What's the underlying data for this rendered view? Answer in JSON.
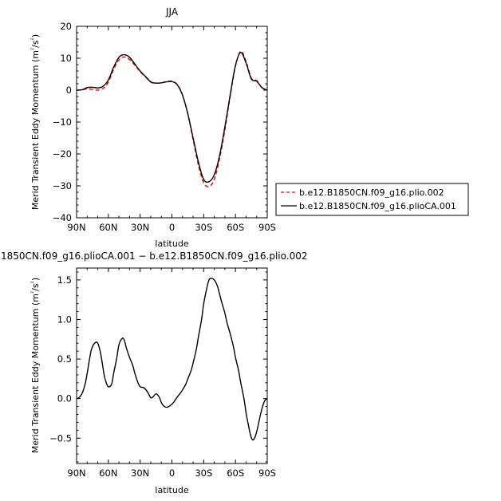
{
  "chart_data": [
    {
      "type": "line",
      "title": "JJA",
      "xlabel": "latitude",
      "ylabel": "Merid Transient Eddy Momentum (m²/s²)",
      "ylabel_main": "Merid Transient Eddy Momentum  (m",
      "ylabel_unit": "²",
      "ylabel_div": "/s",
      "ylabel_end": ")",
      "xlim": [
        90,
        -90
      ],
      "ylim": [
        -40,
        20
      ],
      "x_ticks": [
        90,
        60,
        30,
        0,
        -30,
        -60,
        -90
      ],
      "x_tick_labels": [
        "90N",
        "60N",
        "30N",
        "0",
        "30S",
        "60S",
        "90S"
      ],
      "y_ticks": [
        -40,
        -30,
        -20,
        -10,
        0,
        10,
        20
      ],
      "y_tick_labels": [
        "−40",
        "−30",
        "−20",
        "−10",
        "0",
        "10",
        "20"
      ],
      "legend_position": "right",
      "series": [
        {
          "name": "b.e12.B1850CN.f09_g16.plio.002",
          "color": "#e8000b",
          "dash": "dashed",
          "x": [
            90,
            85,
            80,
            75,
            70,
            65,
            60,
            55,
            50,
            45,
            40,
            35,
            30,
            25,
            20,
            15,
            10,
            5,
            0,
            -5,
            -10,
            -15,
            -20,
            -25,
            -30,
            -35,
            -40,
            -45,
            -50,
            -55,
            -60,
            -65,
            -70,
            -75,
            -80,
            -85,
            -90
          ],
          "values": [
            0,
            0.1,
            0.4,
            0.2,
            0,
            0.5,
            2.5,
            6.5,
            9.5,
            10.4,
            9.6,
            7.8,
            5.8,
            4.2,
            2.5,
            2.2,
            2.3,
            2.7,
            2.8,
            1.8,
            -1.5,
            -7.5,
            -15.5,
            -23.5,
            -29,
            -30.2,
            -28,
            -21.5,
            -12.5,
            -2,
            7.5,
            12.2,
            9,
            3.8,
            3,
            0.8,
            0
          ]
        },
        {
          "name": "b.e12.B1850CN.f09_g16.plioCA.001",
          "color": "#000000",
          "dash": "solid",
          "x": [
            90,
            85,
            80,
            75,
            70,
            65,
            60,
            55,
            50,
            45,
            40,
            35,
            30,
            25,
            20,
            15,
            10,
            5,
            0,
            -5,
            -10,
            -15,
            -20,
            -25,
            -30,
            -35,
            -40,
            -45,
            -50,
            -55,
            -60,
            -65,
            -70,
            -75,
            -80,
            -85,
            -90
          ],
          "values": [
            0,
            0.1,
            0.8,
            0.9,
            0.7,
            1.2,
            3.2,
            7.2,
            10.3,
            11.1,
            10.3,
            8.2,
            6,
            4.3,
            2.6,
            2.2,
            2.3,
            2.6,
            2.7,
            1.7,
            -1.6,
            -7.4,
            -15,
            -22.5,
            -28,
            -28.7,
            -26.5,
            -20.5,
            -11.5,
            -1.5,
            7.8,
            11.8,
            8.5,
            3.5,
            2.8,
            0.8,
            0
          ]
        }
      ]
    },
    {
      "type": "line",
      "title": "1850CN.f09_g16.plioCA.001 − b.e12.B1850CN.f09_g16.plio.002",
      "xlabel": "latitude",
      "ylabel": "Merid Transient Eddy Momentum (m²/s²)",
      "ylabel_main": "Merid Transient Eddy Momentum  (m",
      "ylabel_unit": "²",
      "ylabel_div": "/s",
      "ylabel_end": ")",
      "xlim": [
        90,
        -90
      ],
      "ylim": [
        -0.82,
        1.65
      ],
      "x_ticks": [
        90,
        60,
        30,
        0,
        -30,
        -60,
        -90
      ],
      "x_tick_labels": [
        "90N",
        "60N",
        "30N",
        "0",
        "30S",
        "60S",
        "90S"
      ],
      "y_ticks": [
        -0.5,
        0,
        0.5,
        1.0,
        1.5
      ],
      "y_tick_labels": [
        "−0.5",
        "0.0",
        "0.5",
        "1.0",
        "1.5"
      ],
      "series": [
        {
          "color": "#000000",
          "dash": "solid",
          "x": [
            90,
            88,
            85,
            82,
            80,
            78,
            76,
            73,
            70,
            67,
            64,
            62,
            60,
            57,
            55,
            52,
            50,
            47,
            45,
            43,
            40,
            37,
            35,
            32,
            30,
            27,
            25,
            22,
            20,
            18,
            15,
            12,
            10,
            8,
            5,
            3,
            0,
            -2,
            -5,
            -8,
            -10,
            -13,
            -15,
            -18,
            -20,
            -23,
            -25,
            -28,
            -30,
            -33,
            -35,
            -37,
            -40,
            -43,
            -45,
            -47,
            -50,
            -52,
            -55,
            -58,
            -60,
            -63,
            -65,
            -68,
            -70,
            -72,
            -74,
            -76,
            -78,
            -80,
            -82,
            -84,
            -86,
            -88,
            -90
          ],
          "values": [
            0,
            0.01,
            0.06,
            0.18,
            0.32,
            0.48,
            0.62,
            0.7,
            0.7,
            0.55,
            0.3,
            0.2,
            0.15,
            0.18,
            0.32,
            0.52,
            0.68,
            0.76,
            0.74,
            0.64,
            0.52,
            0.42,
            0.32,
            0.2,
            0.15,
            0.14,
            0.12,
            0.06,
            0.01,
            0.02,
            0.06,
            0.02,
            -0.05,
            -0.09,
            -0.11,
            -0.1,
            -0.07,
            -0.04,
            0.02,
            0.07,
            0.11,
            0.18,
            0.25,
            0.35,
            0.45,
            0.62,
            0.78,
            1.0,
            1.2,
            1.4,
            1.5,
            1.52,
            1.5,
            1.42,
            1.32,
            1.22,
            1.08,
            0.96,
            0.82,
            0.66,
            0.52,
            0.35,
            0.2,
            0.0,
            -0.18,
            -0.32,
            -0.45,
            -0.52,
            -0.5,
            -0.42,
            -0.3,
            -0.18,
            -0.08,
            -0.02,
            0
          ]
        }
      ]
    }
  ],
  "legend_entries": [
    "b.e12.B1850CN.f09_g16.plio.002",
    "b.e12.B1850CN.f09_g16.plioCA.001"
  ]
}
